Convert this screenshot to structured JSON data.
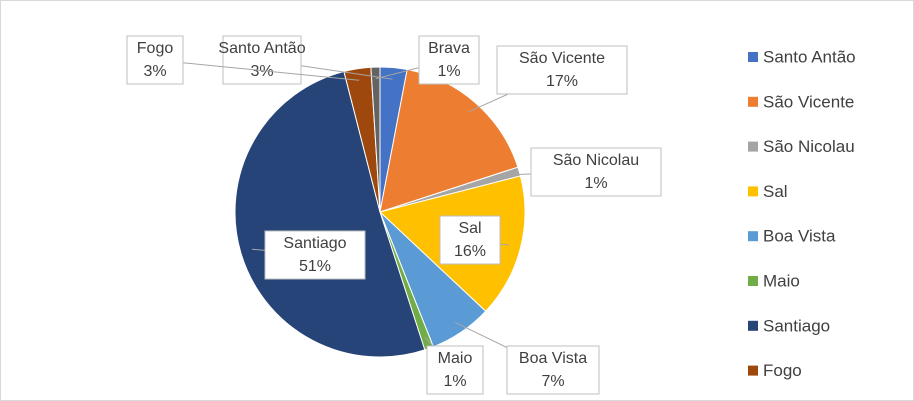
{
  "chart_data": {
    "type": "pie",
    "categories": [
      "Santo Antão",
      "São Vicente",
      "São Nicolau",
      "Sal",
      "Boa Vista",
      "Maio",
      "Santiago",
      "Fogo",
      "Brava"
    ],
    "values": [
      3,
      17,
      1,
      16,
      7,
      1,
      51,
      3,
      1
    ],
    "value_labels": [
      "3%",
      "17%",
      "1%",
      "16%",
      "7%",
      "1%",
      "51%",
      "3%",
      "1%"
    ],
    "colors": [
      "#4472c4",
      "#ed7d31",
      "#a5a5a5",
      "#ffc000",
      "#5b9bd5",
      "#70ad47",
      "#264478",
      "#9e480e",
      "#636363"
    ],
    "legend": "right"
  }
}
